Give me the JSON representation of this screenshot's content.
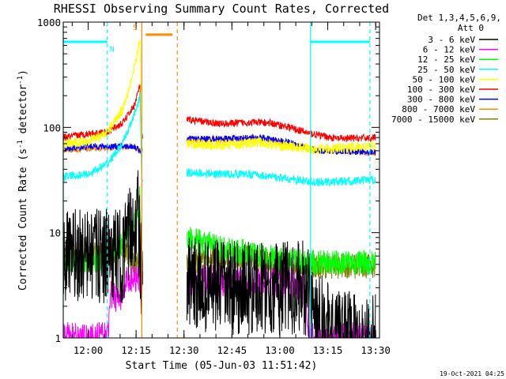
{
  "chart_data": {
    "type": "line",
    "title": "RHESSI Observing Summary Count Rates, Corrected",
    "xlabel": "Start Time (05-Jun-03 11:51:42)",
    "ylabel": "Corrected Count Rate (s⁻¹ detector⁻¹)",
    "ylabel_main": "Corrected Count Rate (s",
    "ylabel_mid": " detector",
    "ylabel_end": ")",
    "ylabel_exp": "-1",
    "yscale": "log",
    "ylim": [
      1,
      1000
    ],
    "xlim": [
      11.87,
      13.52
    ],
    "x_unit": "hours of day (UT)",
    "yticks": [
      1,
      10,
      100,
      1000
    ],
    "ytick_labels": [
      "1",
      "10",
      "100",
      "1000"
    ],
    "xticks": [
      12.0,
      12.25,
      12.5,
      12.75,
      13.0,
      13.25,
      13.5
    ],
    "xtick_labels": [
      "12:00",
      "12:15",
      "12:30",
      "12:45",
      "13:00",
      "13:15",
      "13:30"
    ],
    "legend_header": [
      "Det 1,3,4,5,6,9,",
      "Att 0"
    ],
    "legend_placement": "right",
    "series": [
      {
        "name": "3 - 6 keV",
        "color": "#000000",
        "noise": 0.45,
        "points": [
          [
            11.87,
            6.0
          ],
          [
            12.08,
            6.0
          ],
          [
            12.18,
            6.0
          ],
          [
            12.22,
            10
          ],
          [
            12.26,
            15
          ],
          [
            12.28,
            3
          ],
          [
            12.52,
            3.2
          ],
          [
            12.7,
            3.0
          ],
          [
            13.0,
            3.0
          ],
          [
            13.12,
            3.0
          ],
          [
            13.28,
            1.0
          ],
          [
            13.5,
            1.0
          ]
        ]
      },
      {
        "name": "6 - 12 keV",
        "color": "#ff00ff",
        "noise": 0.15,
        "points": [
          [
            11.87,
            1.0
          ],
          [
            12.1,
            1.0
          ],
          [
            12.12,
            2.5
          ],
          [
            12.18,
            2.5
          ],
          [
            12.2,
            3.5
          ],
          [
            12.26,
            4.0
          ],
          [
            12.28,
            3.5
          ],
          [
            12.52,
            3.5
          ],
          [
            12.8,
            3.5
          ],
          [
            13.0,
            3.4
          ],
          [
            13.12,
            3.2
          ],
          [
            13.16,
            1.0
          ],
          [
            13.5,
            1.0
          ]
        ]
      },
      {
        "name": "12 - 25 keV",
        "color": "#00ff00",
        "noise": 0.12,
        "points": [
          [
            11.87,
            5.5
          ],
          [
            12.08,
            5.5
          ],
          [
            12.18,
            8
          ],
          [
            12.24,
            12
          ],
          [
            12.27,
            22
          ],
          [
            12.28,
            5
          ],
          [
            12.52,
            9
          ],
          [
            12.7,
            7
          ],
          [
            12.85,
            6.5
          ],
          [
            13.0,
            5.5
          ],
          [
            13.2,
            5.2
          ],
          [
            13.5,
            5.2
          ]
        ]
      },
      {
        "name": "25 - 50 keV",
        "color": "#00ffff",
        "noise": 0.04,
        "points": [
          [
            11.87,
            34
          ],
          [
            12.0,
            36
          ],
          [
            12.1,
            45
          ],
          [
            12.18,
            70
          ],
          [
            12.24,
            130
          ],
          [
            12.27,
            200
          ],
          [
            12.28,
            30
          ],
          [
            12.52,
            37
          ],
          [
            12.7,
            36
          ],
          [
            12.85,
            36
          ],
          [
            13.0,
            33
          ],
          [
            13.2,
            30
          ],
          [
            13.4,
            31
          ],
          [
            13.5,
            32
          ]
        ]
      },
      {
        "name": "50 - 100 keV",
        "color": "#ffff00",
        "noise": 0.05,
        "points": [
          [
            11.87,
            68
          ],
          [
            12.0,
            75
          ],
          [
            12.1,
            90
          ],
          [
            12.18,
            150
          ],
          [
            12.24,
            350
          ],
          [
            12.27,
            700
          ],
          [
            12.28,
            60
          ],
          [
            12.52,
            70
          ],
          [
            12.7,
            68
          ],
          [
            12.9,
            72
          ],
          [
            13.0,
            67
          ],
          [
            13.2,
            62
          ],
          [
            13.5,
            66
          ]
        ]
      },
      {
        "name": "100 - 300 keV",
        "color": "#ff0000",
        "noise": 0.035,
        "points": [
          [
            11.87,
            80
          ],
          [
            12.0,
            87
          ],
          [
            12.1,
            90
          ],
          [
            12.18,
            110
          ],
          [
            12.24,
            160
          ],
          [
            12.27,
            250
          ],
          [
            12.28,
            80
          ],
          [
            12.52,
            118
          ],
          [
            12.7,
            108
          ],
          [
            12.85,
            112
          ],
          [
            12.95,
            110
          ],
          [
            13.05,
            100
          ],
          [
            13.15,
            88
          ],
          [
            13.3,
            78
          ],
          [
            13.5,
            80
          ]
        ]
      },
      {
        "name": "300 - 800 keV",
        "color": "#0000ff",
        "noise": 0.03,
        "points": [
          [
            11.87,
            62
          ],
          [
            12.0,
            66
          ],
          [
            12.15,
            66
          ],
          [
            12.24,
            66
          ],
          [
            12.27,
            60
          ],
          [
            12.28,
            60
          ],
          [
            12.52,
            78
          ],
          [
            12.7,
            78
          ],
          [
            12.9,
            80
          ],
          [
            13.05,
            72
          ],
          [
            13.2,
            60
          ],
          [
            13.5,
            58
          ]
        ]
      },
      {
        "name": "800 - 7000 keV",
        "color": "#ff8c00",
        "noise": 0.025,
        "points": [
          [
            11.87,
            60
          ],
          [
            12.0,
            62
          ],
          [
            12.15,
            64
          ],
          [
            12.24,
            65
          ],
          [
            12.27,
            60
          ],
          [
            12.28,
            60
          ],
          [
            12.52,
            75
          ],
          [
            12.7,
            76
          ],
          [
            12.9,
            78
          ],
          [
            13.05,
            70
          ],
          [
            13.2,
            60
          ],
          [
            13.5,
            57
          ]
        ]
      },
      {
        "name": "7000 - 15000 keV",
        "color": "#808000",
        "noise": 0.12,
        "points": [
          [
            11.87,
            6.0
          ],
          [
            12.08,
            6.5
          ],
          [
            12.2,
            7.0
          ],
          [
            12.24,
            5.0
          ],
          [
            12.27,
            5.0
          ],
          [
            12.28,
            5.0
          ],
          [
            12.52,
            5.2
          ],
          [
            12.8,
            6.0
          ],
          [
            13.0,
            5.0
          ],
          [
            13.2,
            4.8
          ],
          [
            13.5,
            4.8
          ]
        ]
      }
    ],
    "saa_bars": [
      {
        "x_start": 11.87,
        "x_end": 12.1,
        "y": 650,
        "color": "#00ffff"
      },
      {
        "x_start": 13.16,
        "x_end": 13.47,
        "y": 650,
        "color": "#00ffff"
      },
      {
        "x_start": 12.3,
        "x_end": 12.44,
        "y": 760,
        "color": "#ff8c00"
      }
    ],
    "vlines": [
      {
        "x": 11.87,
        "color": "#00ffff",
        "style": "solid"
      },
      {
        "x": 12.1,
        "color": "#00ffff",
        "style": "dashed"
      },
      {
        "x": 13.16,
        "color": "#00ffff",
        "style": "solid"
      },
      {
        "x": 13.47,
        "color": "#00ffff",
        "style": "dashed"
      },
      {
        "x": 12.28,
        "color": "#ff8c00",
        "style": "solid"
      },
      {
        "x": 12.465,
        "color": "#ff8c00",
        "style": "dashed"
      }
    ],
    "annotations": [
      {
        "text": "S",
        "x": 12.245,
        "y": 900,
        "color": "#ff8c00"
      },
      {
        "text": "N",
        "x": 12.125,
        "y": 560,
        "color": "#00ffff"
      }
    ]
  },
  "footer": {
    "timestamp": "19-Oct-2021 04:25"
  }
}
